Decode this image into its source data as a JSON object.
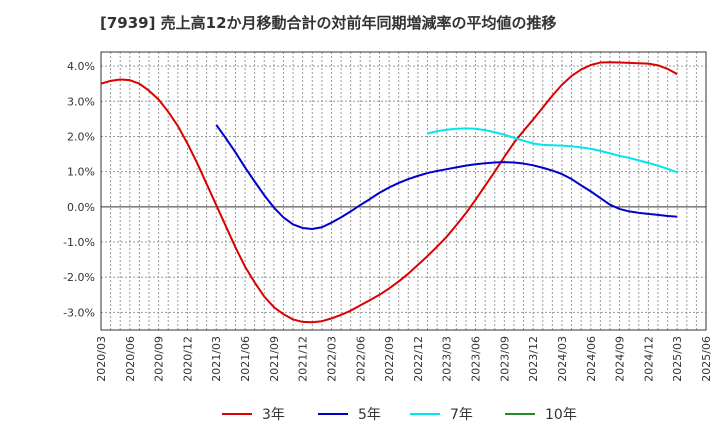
{
  "chart_data": {
    "type": "line",
    "title": "[7939]  売上高12か月移動合計の対前年同期増減率の平均値の推移",
    "xlabel": "",
    "ylabel": "",
    "ylim": [
      -3.5,
      4.4
    ],
    "yticks": [
      4.0,
      3.0,
      2.0,
      1.0,
      0.0,
      -1.0,
      -2.0,
      -3.0
    ],
    "ytick_labels": [
      "4.0%",
      "3.0%",
      "2.0%",
      "1.0%",
      "0.0%",
      "-1.0%",
      "-2.0%",
      "-3.0%"
    ],
    "xticks": [
      "2020/03",
      "2020/06",
      "2020/09",
      "2020/12",
      "2021/03",
      "2021/06",
      "2021/09",
      "2021/12",
      "2022/03",
      "2022/06",
      "2022/09",
      "2022/12",
      "2023/03",
      "2023/06",
      "2023/09",
      "2023/12",
      "2024/03",
      "2024/06",
      "2024/09",
      "2024/12",
      "2025/03",
      "2025/06"
    ],
    "grid": true,
    "legend_position": "bottom",
    "series": [
      {
        "name": "3年",
        "color": "#dd0000",
        "points": [
          [
            "2020/03",
            3.5
          ],
          [
            "2020/04",
            3.58
          ],
          [
            "2020/05",
            3.62
          ],
          [
            "2020/06",
            3.6
          ],
          [
            "2020/07",
            3.5
          ],
          [
            "2020/08",
            3.3
          ],
          [
            "2020/09",
            3.05
          ],
          [
            "2020/10",
            2.7
          ],
          [
            "2020/11",
            2.3
          ],
          [
            "2020/12",
            1.8
          ],
          [
            "2021/01",
            1.25
          ],
          [
            "2021/02",
            0.65
          ],
          [
            "2021/03",
            0.05
          ],
          [
            "2021/04",
            -0.55
          ],
          [
            "2021/05",
            -1.15
          ],
          [
            "2021/06",
            -1.7
          ],
          [
            "2021/07",
            -2.15
          ],
          [
            "2021/08",
            -2.55
          ],
          [
            "2021/09",
            -2.85
          ],
          [
            "2021/10",
            -3.05
          ],
          [
            "2021/11",
            -3.2
          ],
          [
            "2021/12",
            -3.27
          ],
          [
            "2022/01",
            -3.28
          ],
          [
            "2022/02",
            -3.25
          ],
          [
            "2022/03",
            -3.17
          ],
          [
            "2022/04",
            -3.07
          ],
          [
            "2022/05",
            -2.95
          ],
          [
            "2022/06",
            -2.8
          ],
          [
            "2022/07",
            -2.65
          ],
          [
            "2022/08",
            -2.5
          ],
          [
            "2022/09",
            -2.32
          ],
          [
            "2022/10",
            -2.12
          ],
          [
            "2022/11",
            -1.9
          ],
          [
            "2022/12",
            -1.65
          ],
          [
            "2023/01",
            -1.4
          ],
          [
            "2023/02",
            -1.13
          ],
          [
            "2023/03",
            -0.85
          ],
          [
            "2023/04",
            -0.52
          ],
          [
            "2023/05",
            -0.18
          ],
          [
            "2023/06",
            0.2
          ],
          [
            "2023/07",
            0.6
          ],
          [
            "2023/08",
            1.0
          ],
          [
            "2023/09",
            1.42
          ],
          [
            "2023/10",
            1.82
          ],
          [
            "2023/11",
            2.16
          ],
          [
            "2023/12",
            2.48
          ],
          [
            "2024/01",
            2.82
          ],
          [
            "2024/02",
            3.16
          ],
          [
            "2024/03",
            3.47
          ],
          [
            "2024/04",
            3.72
          ],
          [
            "2024/05",
            3.9
          ],
          [
            "2024/06",
            4.03
          ],
          [
            "2024/07",
            4.1
          ],
          [
            "2024/08",
            4.11
          ],
          [
            "2024/09",
            4.1
          ],
          [
            "2024/10",
            4.09
          ],
          [
            "2024/11",
            4.08
          ],
          [
            "2024/12",
            4.07
          ],
          [
            "2025/01",
            4.02
          ],
          [
            "2025/02",
            3.92
          ],
          [
            "2025/03",
            3.77
          ]
        ]
      },
      {
        "name": "5年",
        "color": "#0000cc",
        "points": [
          [
            "2021/03",
            2.33
          ],
          [
            "2021/04",
            1.95
          ],
          [
            "2021/05",
            1.55
          ],
          [
            "2021/06",
            1.12
          ],
          [
            "2021/07",
            0.72
          ],
          [
            "2021/08",
            0.33
          ],
          [
            "2021/09",
            -0.02
          ],
          [
            "2021/10",
            -0.3
          ],
          [
            "2021/11",
            -0.5
          ],
          [
            "2021/12",
            -0.6
          ],
          [
            "2022/01",
            -0.63
          ],
          [
            "2022/02",
            -0.58
          ],
          [
            "2022/03",
            -0.45
          ],
          [
            "2022/04",
            -0.3
          ],
          [
            "2022/05",
            -0.13
          ],
          [
            "2022/06",
            0.05
          ],
          [
            "2022/07",
            0.22
          ],
          [
            "2022/08",
            0.4
          ],
          [
            "2022/09",
            0.55
          ],
          [
            "2022/10",
            0.68
          ],
          [
            "2022/11",
            0.79
          ],
          [
            "2022/12",
            0.88
          ],
          [
            "2023/01",
            0.96
          ],
          [
            "2023/02",
            1.02
          ],
          [
            "2023/03",
            1.07
          ],
          [
            "2023/04",
            1.12
          ],
          [
            "2023/05",
            1.17
          ],
          [
            "2023/06",
            1.21
          ],
          [
            "2023/07",
            1.24
          ],
          [
            "2023/08",
            1.26
          ],
          [
            "2023/09",
            1.27
          ],
          [
            "2023/10",
            1.26
          ],
          [
            "2023/11",
            1.23
          ],
          [
            "2023/12",
            1.18
          ],
          [
            "2024/01",
            1.11
          ],
          [
            "2024/02",
            1.03
          ],
          [
            "2024/03",
            0.93
          ],
          [
            "2024/04",
            0.79
          ],
          [
            "2024/05",
            0.61
          ],
          [
            "2024/06",
            0.44
          ],
          [
            "2024/07",
            0.25
          ],
          [
            "2024/08",
            0.06
          ],
          [
            "2024/09",
            -0.06
          ],
          [
            "2024/10",
            -0.13
          ],
          [
            "2024/11",
            -0.17
          ],
          [
            "2024/12",
            -0.2
          ],
          [
            "2025/01",
            -0.23
          ],
          [
            "2025/02",
            -0.26
          ],
          [
            "2025/03",
            -0.28
          ]
        ]
      },
      {
        "name": "7年",
        "color": "#00e5ee",
        "points": [
          [
            "2023/01",
            2.08
          ],
          [
            "2023/02",
            2.15
          ],
          [
            "2023/03",
            2.19
          ],
          [
            "2023/04",
            2.22
          ],
          [
            "2023/05",
            2.23
          ],
          [
            "2023/06",
            2.22
          ],
          [
            "2023/07",
            2.18
          ],
          [
            "2023/08",
            2.12
          ],
          [
            "2023/09",
            2.05
          ],
          [
            "2023/10",
            1.96
          ],
          [
            "2023/11",
            1.88
          ],
          [
            "2023/12",
            1.8
          ],
          [
            "2024/01",
            1.76
          ],
          [
            "2024/02",
            1.75
          ],
          [
            "2024/03",
            1.74
          ],
          [
            "2024/04",
            1.72
          ],
          [
            "2024/05",
            1.69
          ],
          [
            "2024/06",
            1.65
          ],
          [
            "2024/07",
            1.59
          ],
          [
            "2024/08",
            1.52
          ],
          [
            "2024/09",
            1.45
          ],
          [
            "2024/10",
            1.39
          ],
          [
            "2024/11",
            1.32
          ],
          [
            "2024/12",
            1.25
          ],
          [
            "2025/01",
            1.17
          ],
          [
            "2025/02",
            1.08
          ],
          [
            "2025/03",
            0.98
          ]
        ]
      },
      {
        "name": "10年",
        "color": "#228b22",
        "points": []
      }
    ]
  }
}
